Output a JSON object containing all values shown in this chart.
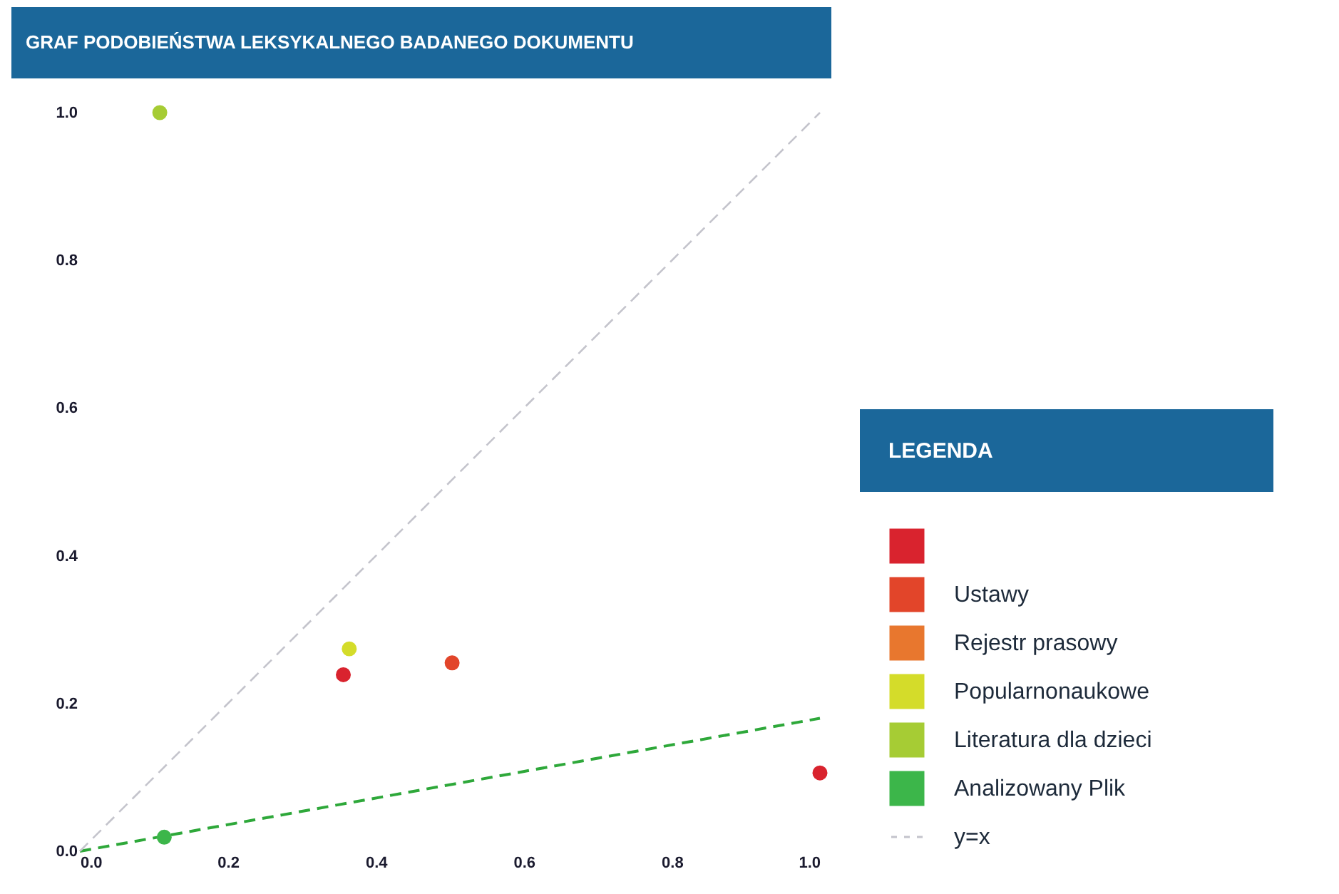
{
  "chart_data": {
    "type": "scatter",
    "title": "GRAF PODOBIEŃSTWA LEKSYKALNEGO BADANEGO DOKUMENTU",
    "legend_title": "LEGENDA",
    "xlim": [
      0,
      1
    ],
    "ylim": [
      0,
      1
    ],
    "xticks": [
      {
        "value": 0,
        "label": "0.0"
      },
      0.2,
      0.4,
      0.6,
      0.8,
      {
        "value": 1,
        "label": "1.0"
      }
    ],
    "yticks": [
      {
        "value": 0,
        "label": "0.0"
      },
      0.2,
      0.4,
      0.6,
      0.8,
      {
        "value": 1,
        "label": "1.0"
      }
    ],
    "grid": false,
    "legend": "right",
    "marker": "circle",
    "series": [
      {
        "color": "#d9232e",
        "x": [
          0.356,
          1.0
        ],
        "values": [
          0.239,
          0.106
        ]
      },
      {
        "name": "Ustawy",
        "color": "#e2452a",
        "x": [
          0.503
        ],
        "values": [
          0.255
        ]
      },
      {
        "name": "Rejestr prasowy",
        "color": "#e8772e"
      },
      {
        "name": "Popularnonaukowe",
        "color": "#d4dc2a",
        "x": [
          0.364
        ],
        "values": [
          0.274
        ]
      },
      {
        "name": "Literatura dla dzieci",
        "color": "#a6cc34",
        "x": [
          0.108
        ],
        "values": [
          1.0
        ]
      },
      {
        "name": "Analizowany Plik",
        "color": "#3cb64a",
        "x": [
          0.114
        ],
        "values": [
          0.019
        ]
      },
      {
        "type": "line",
        "line_style": "dashed",
        "marker": "none",
        "color": "#2ea83a",
        "x": [
          0,
          1
        ],
        "values": [
          0,
          0.18
        ]
      },
      {
        "name": "y=x",
        "type": "line",
        "line_style": "dashed",
        "marker": "none",
        "color": "#c4c4cc",
        "x": [
          0,
          1
        ],
        "values": [
          0,
          1
        ]
      }
    ]
  }
}
